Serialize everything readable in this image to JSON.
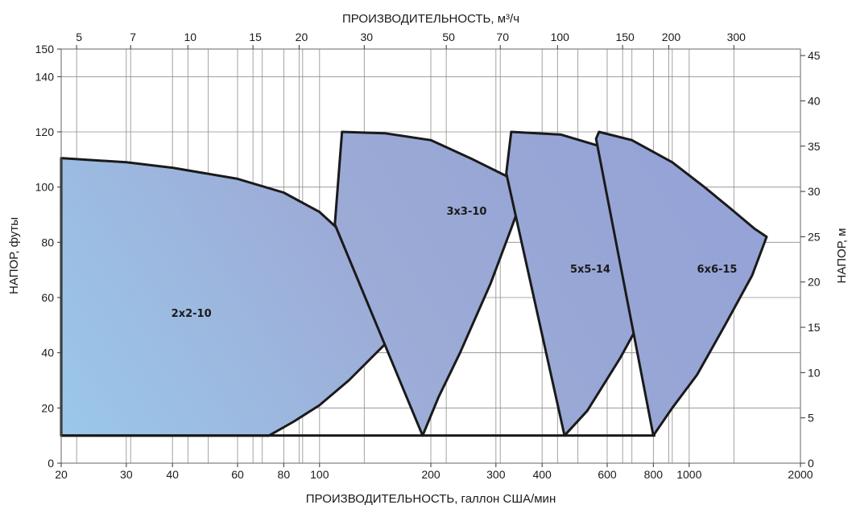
{
  "chart_data": {
    "type": "area",
    "top_axis_title": "ПРОИЗВОДИТЕЛЬНОСТЬ, м³/ч",
    "bottom_axis_title": "ПРОИЗВОДИТЕЛЬНОСТЬ, галлон США/мин",
    "left_axis_title": "НАПОР, футы",
    "right_axis_title": "НАПОР, м",
    "x_scale": "log",
    "x_range_gpm": [
      20,
      2000
    ],
    "y_range_ft": [
      0,
      150
    ],
    "x_ticks_gpm": [
      20,
      30,
      40,
      60,
      80,
      100,
      200,
      300,
      400,
      600,
      800,
      1000,
      2000
    ],
    "x_grid_gpm": [
      20,
      30,
      40,
      50,
      60,
      70,
      80,
      90,
      100,
      200,
      300,
      400,
      500,
      600,
      700,
      800,
      900,
      1000,
      2000
    ],
    "x_top_ticks_m3h": [
      5,
      7,
      10,
      15,
      20,
      30,
      50,
      70,
      100,
      150,
      200,
      300
    ],
    "y_left_ticks_ft": [
      0,
      20,
      40,
      60,
      80,
      100,
      120,
      140,
      150
    ],
    "y_right_ticks_m": [
      0,
      5,
      10,
      15,
      20,
      25,
      30,
      35,
      40,
      45
    ],
    "baseline_ft": 10,
    "series": [
      {
        "name": "2x2-10",
        "label_at": [
          45,
          53
        ],
        "boundary": [
          [
            20,
            10
          ],
          [
            20,
            110.5
          ],
          [
            30,
            109
          ],
          [
            40,
            107
          ],
          [
            60,
            103
          ],
          [
            80,
            98
          ],
          [
            100,
            91
          ],
          [
            130,
            77
          ],
          [
            160,
            63
          ],
          [
            175,
            56
          ],
          [
            150,
            43
          ],
          [
            120,
            30
          ],
          [
            100,
            21
          ],
          [
            85,
            15
          ],
          [
            73,
            10
          ]
        ]
      },
      {
        "name": "3x3-10",
        "label_at": [
          250,
          90
        ],
        "boundary": [
          [
            110,
            86.5
          ],
          [
            115,
            120
          ],
          [
            150,
            119.5
          ],
          [
            200,
            117
          ],
          [
            260,
            110
          ],
          [
            320,
            104
          ],
          [
            360,
            99
          ],
          [
            330,
            85
          ],
          [
            290,
            65
          ],
          [
            240,
            40
          ],
          [
            210,
            24
          ],
          [
            190,
            10
          ]
        ]
      },
      {
        "name": "5x5-14",
        "label_at": [
          540,
          69
        ],
        "boundary": [
          [
            320,
            105
          ],
          [
            330,
            120
          ],
          [
            450,
            119
          ],
          [
            600,
            114
          ],
          [
            750,
            106
          ],
          [
            900,
            98
          ],
          [
            1000,
            93
          ],
          [
            920,
            78
          ],
          [
            800,
            60
          ],
          [
            650,
            38
          ],
          [
            530,
            19
          ],
          [
            460,
            10
          ]
        ]
      },
      {
        "name": "6x6-15",
        "label_at": [
          1190,
          69
        ],
        "boundary": [
          [
            560,
            117.5
          ],
          [
            570,
            120
          ],
          [
            700,
            117
          ],
          [
            900,
            109
          ],
          [
            1100,
            100
          ],
          [
            1300,
            92
          ],
          [
            1500,
            85
          ],
          [
            1620,
            82
          ],
          [
            1480,
            68
          ],
          [
            1250,
            50
          ],
          [
            1050,
            32
          ],
          [
            900,
            20
          ],
          [
            800,
            10
          ]
        ]
      }
    ]
  }
}
